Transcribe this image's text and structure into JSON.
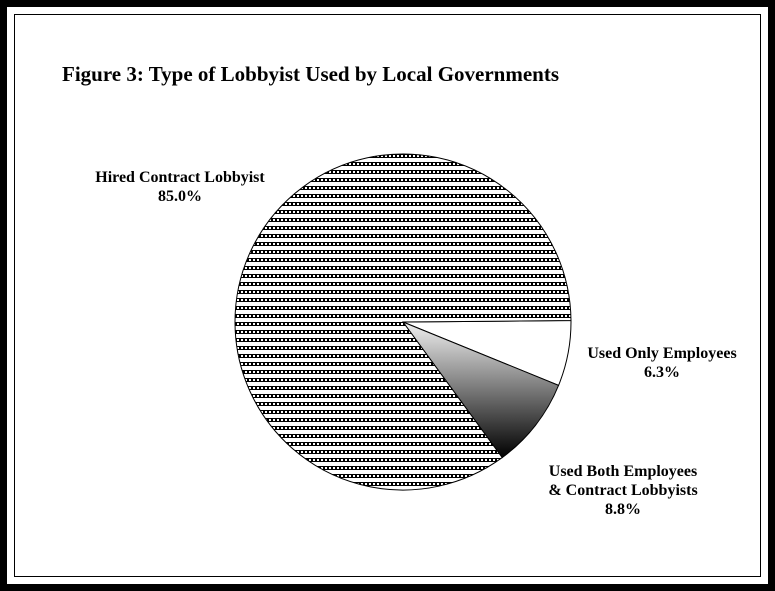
{
  "chart_data": {
    "type": "pie",
    "title": "Figure 3:  Type of Lobbyist Used by Local Governments",
    "slices": [
      {
        "label_lines": [
          "Hired Contract Lobbyist"
        ],
        "value": 85.0,
        "value_label": "85.0%",
        "fill": "hatch"
      },
      {
        "label_lines": [
          "Used Only Employees"
        ],
        "value": 6.3,
        "value_label": "6.3%",
        "fill": "white"
      },
      {
        "label_lines": [
          "Used Both Employees",
          "& Contract Lobbyists"
        ],
        "value": 8.8,
        "value_label": "8.8%",
        "fill": "gradient"
      }
    ]
  },
  "colors": {
    "border": "#000000",
    "background": "#ffffff",
    "gradient_light": "#f0f0f0",
    "gradient_dark": "#000000"
  }
}
